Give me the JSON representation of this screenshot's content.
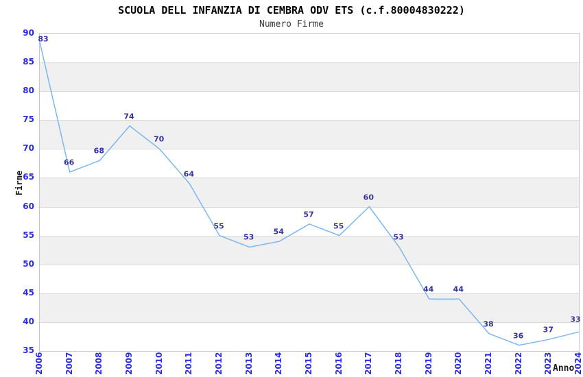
{
  "header": {
    "title": "SCUOLA DELL INFANZIA DI CEMBRA ODV ETS (c.f.80004830222)",
    "subtitle": "Numero Firme"
  },
  "chart_data": {
    "type": "line",
    "title": "SCUOLA DELL INFANZIA DI CEMBRA ODV ETS (c.f.80004830222)",
    "subtitle": "Numero Firme",
    "xlabel": "Anno",
    "ylabel": "Firme",
    "categories": [
      "2006",
      "2007",
      "2008",
      "2009",
      "2010",
      "2011",
      "2012",
      "2013",
      "2014",
      "2015",
      "2016",
      "2017",
      "2018",
      "2019",
      "2020",
      "2021",
      "2022",
      "2023",
      "2024"
    ],
    "values": [
      83,
      66,
      68,
      74,
      70,
      64,
      55,
      53,
      54,
      57,
      55,
      60,
      53,
      44,
      44,
      38,
      36,
      37,
      33
    ],
    "point_labels": [
      "83",
      "66",
      "68",
      "74",
      "70",
      "64",
      "55",
      "53",
      "54",
      "57",
      "55",
      "60",
      "53",
      "44",
      "44",
      "38",
      "36",
      "37",
      "33"
    ],
    "plotted_values": [
      88.5,
      66,
      68,
      74,
      70,
      64,
      55,
      53,
      54,
      57,
      55,
      60,
      53,
      44,
      44,
      38,
      36,
      37,
      38.3
    ],
    "ylim": [
      35,
      90
    ],
    "ytick_step": 5,
    "grid": "horizontal alternating bands every 5 units",
    "legend": "none"
  },
  "colors": {
    "background": "#FFFFFF",
    "line": "#7EB6EA",
    "band": "#F0F0F0",
    "gridline": "#DADADA",
    "plot_border": "#C8C8C8",
    "tick_label": "#2B2BDF",
    "point_label": "#34349B",
    "title": "#000000",
    "subtitle": "#3A3A3A",
    "axis_title": "#1A1A1A"
  }
}
